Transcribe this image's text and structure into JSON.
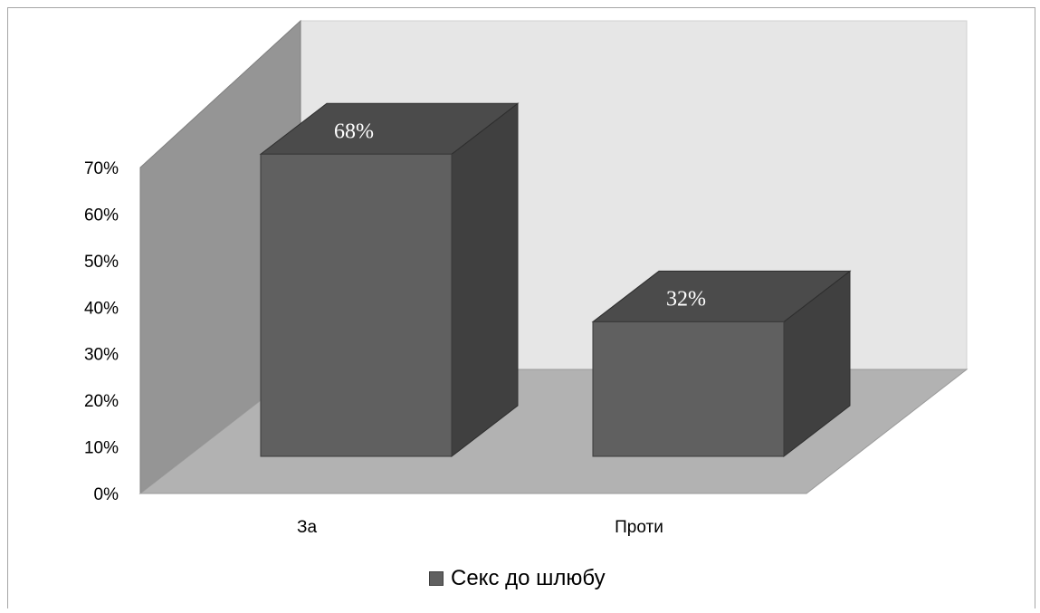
{
  "chart_data": {
    "type": "bar",
    "style": "3d-column",
    "title": "",
    "xlabel": "",
    "ylabel": "",
    "categories": [
      "За",
      "Проти"
    ],
    "series": [
      {
        "name": "Секс до шлюбу",
        "values": [
          0.68,
          0.32
        ],
        "color": "#606060"
      }
    ],
    "data_labels": [
      "68%",
      "32%"
    ],
    "y_ticks": [
      "0%",
      "10%",
      "20%",
      "30%",
      "40%",
      "50%",
      "60%",
      "70%"
    ],
    "ylim": [
      0,
      0.7
    ],
    "legend_position": "bottom",
    "colors": {
      "back_wall": "#e6e6e6",
      "side_wall": "#959595",
      "floor": "#b2b2b2",
      "bar_front": "#606060",
      "bar_side": "#404040",
      "bar_top": "#4b4b4b"
    }
  }
}
